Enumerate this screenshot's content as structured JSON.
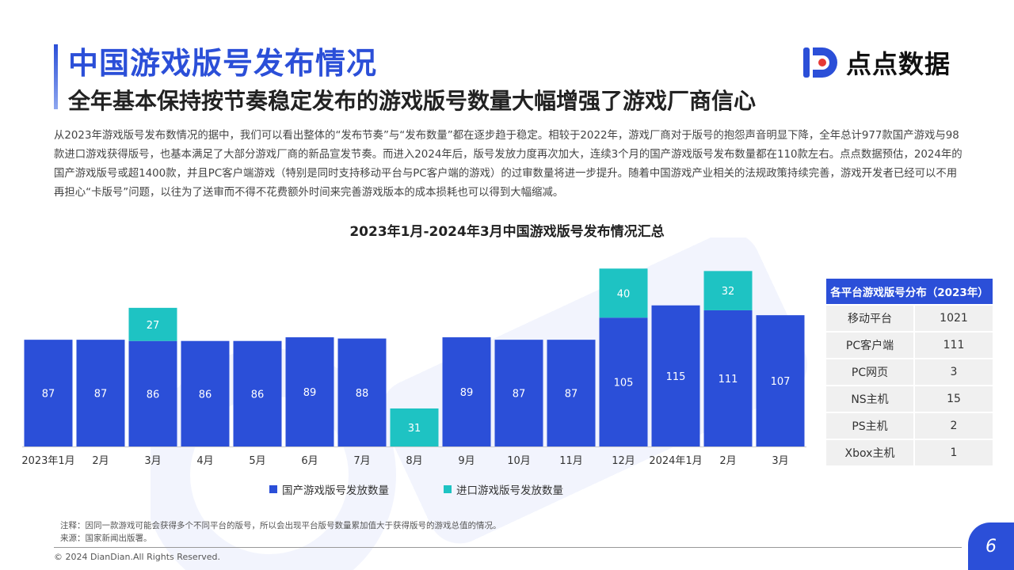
{
  "header": {
    "title": "中国游戏版号发布情况",
    "subtitle": "全年基本保持按节奏稳定发布的游戏版号数量大幅增强了游戏厂商信心",
    "logo_text": "点点数据"
  },
  "description": "从2023年游戏版号发布数情况的据中，我们可以看出整体的“发布节奏”与“发布数量”都在逐步趋于稳定。相较于2022年，游戏厂商对于版号的抱怨声音明显下降，全年总计977款国产游戏与98款进口游戏获得版号，也基本满足了大部分游戏厂商的新品宣发节奏。而进入2024年后，版号发放力度再次加大，连续3个月的国产游戏版号发布数量都在110款左右。点点数据预估，2024年的国产游戏版号或超1400款，并且PC客户端游戏（特别是同时支持移动平台与PC客户端的游戏）的过审数量将进一步提升。随着中国游戏产业相关的法规政策持续完善，游戏开发者已经可以不用再担心“卡版号”问题，以往为了送审而不得不花费额外时间来完善游戏版本的成本损耗也可以得到大幅缩减。",
  "chart_data": {
    "type": "bar",
    "stacked": true,
    "title": "2023年1月-2024年3月中国游戏版号发布情况汇总",
    "categories": [
      "2023年1月",
      "2月",
      "3月",
      "4月",
      "5月",
      "6月",
      "7月",
      "8月",
      "9月",
      "10月",
      "11月",
      "12月",
      "2024年1月",
      "2月",
      "3月"
    ],
    "series": [
      {
        "name": "国产游戏版号发放数量",
        "color": "#2b4fd8",
        "values": [
          87,
          87,
          86,
          86,
          86,
          89,
          88,
          0,
          89,
          87,
          87,
          105,
          115,
          111,
          107
        ]
      },
      {
        "name": "进口游戏版号发放数量",
        "color": "#1ec3c3",
        "values": [
          0,
          0,
          27,
          0,
          0,
          0,
          0,
          31,
          0,
          0,
          0,
          40,
          0,
          32,
          0
        ]
      }
    ],
    "grid": false,
    "legend": "bottom"
  },
  "side_table": {
    "title": "各平台游戏版号分布（2023年）",
    "rows": [
      {
        "platform": "移动平台",
        "count": "1021"
      },
      {
        "platform": "PC客户端",
        "count": "111"
      },
      {
        "platform": "PC网页",
        "count": "3"
      },
      {
        "platform": "NS主机",
        "count": "15"
      },
      {
        "platform": "PS主机",
        "count": "2"
      },
      {
        "platform": "Xbox主机",
        "count": "1"
      }
    ]
  },
  "notes": {
    "note": "注释：因同一款游戏可能会获得多个不同平台的版号，所以会出现平台版号数量累加值大于获得版号的游戏总值的情况。",
    "source": "来源：国家新闻出版署。"
  },
  "footer": {
    "copyright": "© 2024 DianDian.All Rights Reserved.",
    "page_number": "6"
  },
  "colors": {
    "brand": "#2b4fd8",
    "import": "#1ec3c3"
  }
}
